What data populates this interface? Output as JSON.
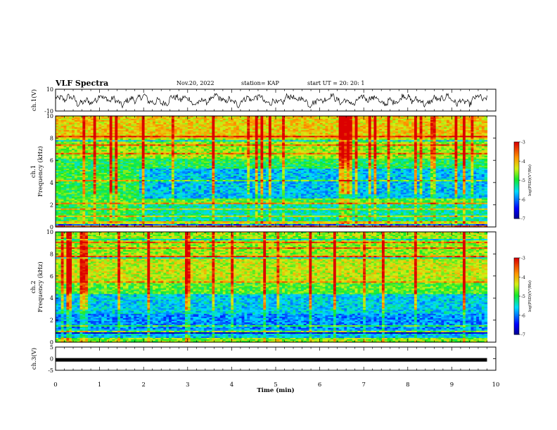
{
  "header": {
    "title": "VLF Spectra",
    "date": "Nov.20, 2022",
    "station": "station= KAP",
    "start": "start  UT  =   20: 20: 1"
  },
  "chart_data": [
    {
      "type": "line",
      "panel": "ch1-waveform",
      "ylabel": "ch.1(V)",
      "ylim": [
        -10,
        10
      ],
      "yticks": [
        10,
        -10
      ],
      "xlim": [
        0,
        10
      ],
      "series": [
        {
          "style": "noisy waveform",
          "baseline": 0,
          "approx_range": [
            -7,
            6
          ],
          "duration_min": 9.8
        }
      ]
    },
    {
      "type": "heatmap",
      "panel": "ch1-spectrogram",
      "ylabel": "ch.1\nFrequency (kHz)",
      "ylim": [
        0,
        10
      ],
      "yticks": [
        0,
        2,
        4,
        6,
        8,
        10
      ],
      "xlim": [
        0,
        10
      ],
      "duration_min": 9.8,
      "colorbar": {
        "label": "log(PSD)(V²/Hz)",
        "range": [
          -7,
          -3
        ],
        "ticks": [
          -3,
          -4,
          -5,
          -6,
          -7
        ],
        "colormap": "jet"
      }
    },
    {
      "type": "heatmap",
      "panel": "ch2-spectrogram",
      "ylabel": "ch.2\nFrequency (kHz)",
      "ylim": [
        0,
        10
      ],
      "yticks": [
        0,
        2,
        4,
        6,
        8,
        10
      ],
      "xlim": [
        0,
        10
      ],
      "duration_min": 9.8,
      "colorbar": {
        "label": "log(PSD)(V²/Hz)",
        "range": [
          -7,
          -3
        ],
        "ticks": [
          -3,
          -4,
          -5,
          -6,
          -7
        ],
        "colormap": "jet"
      }
    },
    {
      "type": "line",
      "panel": "ch3-waveform",
      "ylabel": "ch.3(V)",
      "ylim": [
        -5,
        5
      ],
      "yticks": [
        5,
        0,
        -5
      ],
      "xlim": [
        0,
        10
      ],
      "series": [
        {
          "style": "thick constant band",
          "value": -0.5,
          "duration_min": 9.8
        }
      ]
    }
  ],
  "xaxis": {
    "label": "Time  (min)",
    "ticks": [
      0,
      1,
      2,
      3,
      4,
      5,
      6,
      7,
      8,
      9,
      10
    ]
  }
}
